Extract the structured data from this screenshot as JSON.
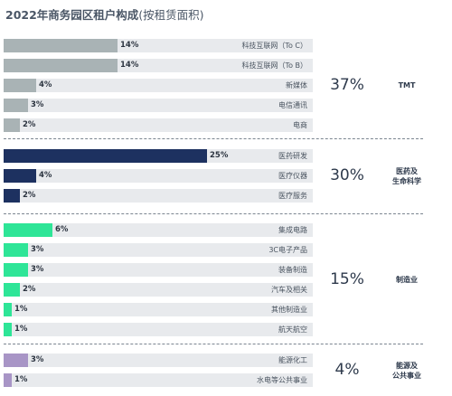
{
  "title": {
    "main": "2022年商务园区租户构成",
    "sub": "(按租赁面积)"
  },
  "chart_data": {
    "type": "bar",
    "title": "2022年商务园区租户构成(按租赁面积)",
    "unit": "%",
    "xlim": [
      0,
      34
    ],
    "groups": [
      {
        "name": "TMT",
        "total": "37%",
        "color": "#a9b3b5",
        "items": [
          {
            "label": "科技互联网（To C）",
            "value": 14,
            "display": "14%"
          },
          {
            "label": "科技互联网（To B）",
            "value": 14,
            "display": "14%"
          },
          {
            "label": "新媒体",
            "value": 4,
            "display": "4%"
          },
          {
            "label": "电信通讯",
            "value": 3,
            "display": "3%"
          },
          {
            "label": "电商",
            "value": 2,
            "display": "2%"
          }
        ]
      },
      {
        "name": "医药及\n生命科学",
        "total": "30%",
        "color": "#1d3160",
        "items": [
          {
            "label": "医药研发",
            "value": 25,
            "display": "25%"
          },
          {
            "label": "医疗仪器",
            "value": 4,
            "display": "4%"
          },
          {
            "label": "医疗服务",
            "value": 2,
            "display": "2%"
          }
        ]
      },
      {
        "name": "制造业",
        "total": "15%",
        "color": "#2ee597",
        "items": [
          {
            "label": "集成电路",
            "value": 6,
            "display": "6%"
          },
          {
            "label": "3C电子产品",
            "value": 3,
            "display": "3%"
          },
          {
            "label": "装备制造",
            "value": 3,
            "display": "3%"
          },
          {
            "label": "汽车及相关",
            "value": 2,
            "display": "2%"
          },
          {
            "label": "其他制造业",
            "value": 1,
            "display": "1%"
          },
          {
            "label": "航天航空",
            "value": 1,
            "display": "1%"
          }
        ]
      },
      {
        "name": "能源及\n公共事业",
        "total": "4%",
        "color": "#a895c6",
        "items": [
          {
            "label": "能源化工",
            "value": 3,
            "display": "3%"
          },
          {
            "label": "水电等公共事业",
            "value": 1,
            "display": "1%"
          }
        ]
      }
    ]
  }
}
